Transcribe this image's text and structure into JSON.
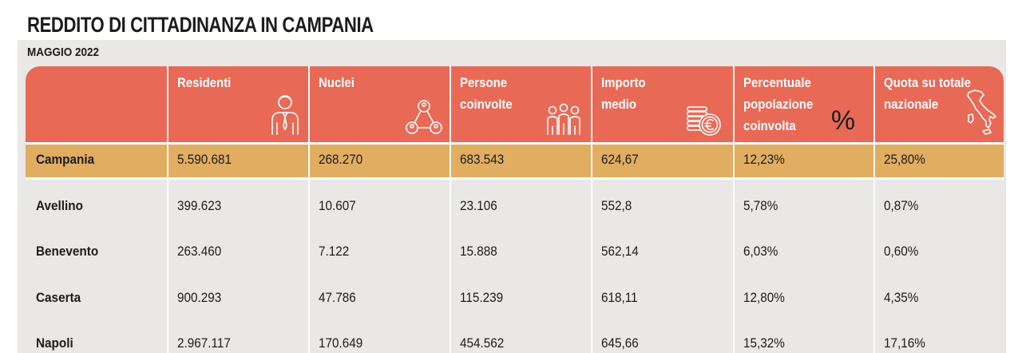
{
  "title": "REDDITO DI CITTADINANZA IN CAMPANIA",
  "subtitle": "MAGGIO 2022",
  "colors": {
    "header_bg": "#e86a56",
    "highlight_row_bg": "#e1ad60",
    "body_bg": "#e9e8e7",
    "text": "#1c1c1c"
  },
  "chart_data": {
    "type": "table",
    "title": "REDDITO DI CITTADINANZA IN CAMPANIA",
    "subtitle": "MAGGIO 2022",
    "columns": [
      {
        "label_lines": [
          "Residenti"
        ],
        "icon": "person-tie-icon"
      },
      {
        "label_lines": [
          "Nuclei"
        ],
        "icon": "family-network-icon"
      },
      {
        "label_lines": [
          "Persone",
          "coinvolte"
        ],
        "icon": "group-people-icon"
      },
      {
        "label_lines": [
          "Importo",
          "medio"
        ],
        "icon": "euro-coins-icon"
      },
      {
        "label_lines": [
          "Percentuale",
          "popolazione",
          "coinvolta"
        ],
        "icon": "percent-icon",
        "icon_text": "%"
      },
      {
        "label_lines": [
          "Quota su totale",
          "nazionale"
        ],
        "icon": "italy-map-icon"
      }
    ],
    "rows": [
      {
        "name": "Campania",
        "highlight": true,
        "values": [
          "5.590.681",
          "268.270",
          "683.543",
          "624,67",
          "12,23%",
          "25,80%"
        ]
      },
      {
        "name": "Avellino",
        "highlight": false,
        "values": [
          "399.623",
          "10.607",
          "23.106",
          "552,8",
          "5,78%",
          "0,87%"
        ]
      },
      {
        "name": "Benevento",
        "highlight": false,
        "values": [
          "263.460",
          "7.122",
          "15.888",
          "562,14",
          "6,03%",
          "0,60%"
        ]
      },
      {
        "name": "Caserta",
        "highlight": false,
        "values": [
          "900.293",
          "47.786",
          "115.239",
          "618,11",
          "12,80%",
          "4,35%"
        ]
      },
      {
        "name": "Napoli",
        "highlight": false,
        "values": [
          "2.967.117",
          "170.649",
          "454.562",
          "645,66",
          "15,32%",
          "17,16%"
        ]
      }
    ]
  }
}
